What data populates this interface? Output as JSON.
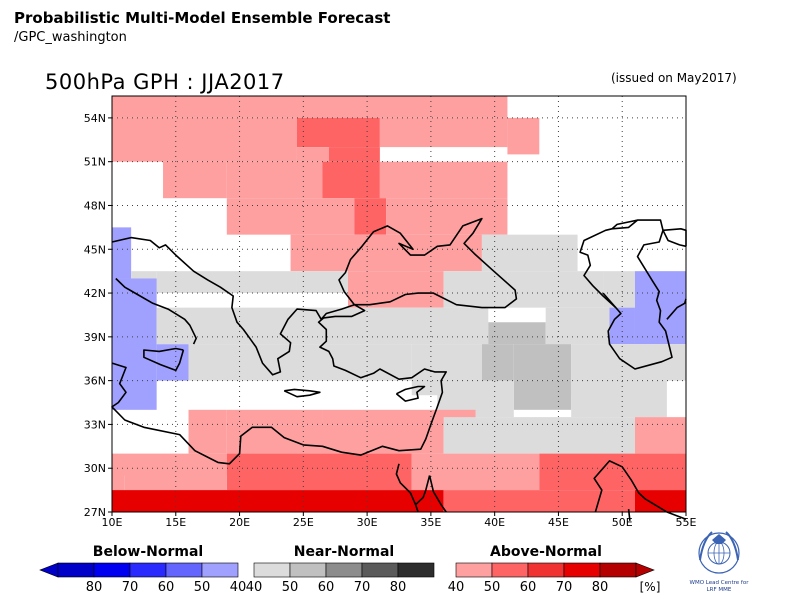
{
  "header": {
    "title": "Probabilistic Multi-Model Ensemble Forecast",
    "subtitle": "/GPC_washington",
    "map_title": "500hPa GPH : JJA2017",
    "issued": "(issued on May2017)"
  },
  "axes": {
    "lat_labels": [
      "54N",
      "51N",
      "48N",
      "45N",
      "42N",
      "39N",
      "36N",
      "33N",
      "30N",
      "27N"
    ],
    "lat_values": [
      54,
      51,
      48,
      45,
      42,
      39,
      36,
      33,
      30,
      27
    ],
    "lon_labels": [
      "10E",
      "15E",
      "20E",
      "25E",
      "30E",
      "35E",
      "40E",
      "45E",
      "50E",
      "55E"
    ],
    "lon_values": [
      10,
      15,
      20,
      25,
      30,
      35,
      40,
      45,
      50,
      55
    ],
    "lon_range": [
      10,
      55
    ],
    "lat_range": [
      27,
      55.5
    ],
    "grid": true
  },
  "legend": {
    "unit": "[%]",
    "groups": [
      {
        "name": "Below-Normal",
        "labels": [
          "80",
          "70",
          "60",
          "50",
          "40"
        ],
        "colors": [
          "#0000c8",
          "#0000f0",
          "#2a2aff",
          "#6464ff",
          "#a0a0ff"
        ]
      },
      {
        "name": "Near-Normal",
        "labels": [
          "40",
          "50",
          "60",
          "70",
          "80"
        ],
        "colors": [
          "#dcdcdc",
          "#c0c0c0",
          "#8c8c8c",
          "#5a5a5a",
          "#2d2d2d"
        ]
      },
      {
        "name": "Above-Normal",
        "labels": [
          "40",
          "50",
          "60",
          "70",
          "80"
        ],
        "colors": [
          "#ffa0a0",
          "#ff6464",
          "#f03232",
          "#e60000",
          "#b40000"
        ]
      }
    ]
  },
  "logo": {
    "text_line1": "WMO Lead Centre for",
    "text_line2": "LRF MME"
  },
  "category_colors": {
    "B40": "#a0a0ff",
    "N40": "#dcdcdc",
    "N50": "#c0c0c0",
    "A40": "#ffa0a0",
    "A50": "#ff6464",
    "A70": "#e60000"
  },
  "cells": [
    {
      "lon": [
        10.0,
        41.0
      ],
      "lat": [
        54.0,
        55.5
      ],
      "c": "A40"
    },
    {
      "lon": [
        10.0,
        24.5
      ],
      "lat": [
        51.0,
        54.0
      ],
      "c": "A40"
    },
    {
      "lon": [
        24.5,
        31.0
      ],
      "lat": [
        52.0,
        54.0
      ],
      "c": "A50"
    },
    {
      "lon": [
        31.0,
        41.0
      ],
      "lat": [
        52.0,
        54.0
      ],
      "c": "A40"
    },
    {
      "lon": [
        41.0,
        43.5
      ],
      "lat": [
        51.5,
        54.0
      ],
      "c": "A40"
    },
    {
      "lon": [
        24.5,
        27.0
      ],
      "lat": [
        51.0,
        52.0
      ],
      "c": "A40"
    },
    {
      "lon": [
        27.0,
        31.0
      ],
      "lat": [
        51.0,
        52.0
      ],
      "c": "A50"
    },
    {
      "lon": [
        14.0,
        19.0
      ],
      "lat": [
        48.5,
        51.0
      ],
      "c": "A40"
    },
    {
      "lon": [
        19.0,
        26.5
      ],
      "lat": [
        48.5,
        51.0
      ],
      "c": "A40"
    },
    {
      "lon": [
        26.5,
        31.0
      ],
      "lat": [
        48.5,
        51.0
      ],
      "c": "A50"
    },
    {
      "lon": [
        31.0,
        41.0
      ],
      "lat": [
        48.5,
        51.0
      ],
      "c": "A40"
    },
    {
      "lon": [
        19.0,
        29.0
      ],
      "lat": [
        46.0,
        48.5
      ],
      "c": "A40"
    },
    {
      "lon": [
        29.0,
        31.5
      ],
      "lat": [
        46.0,
        48.5
      ],
      "c": "A50"
    },
    {
      "lon": [
        31.5,
        41.0
      ],
      "lat": [
        46.0,
        48.5
      ],
      "c": "A40"
    },
    {
      "lon": [
        24.0,
        39.0
      ],
      "lat": [
        43.5,
        46.0
      ],
      "c": "A40"
    },
    {
      "lon": [
        39.0,
        46.5
      ],
      "lat": [
        43.5,
        46.0
      ],
      "c": "N40"
    },
    {
      "lon": [
        10.0,
        11.5
      ],
      "lat": [
        43.0,
        46.5
      ],
      "c": "B40"
    },
    {
      "lon": [
        11.5,
        13.5
      ],
      "lat": [
        42.0,
        43.5
      ],
      "c": "N40"
    },
    {
      "lon": [
        13.5,
        24.5
      ],
      "lat": [
        42.0,
        43.5
      ],
      "c": "N40"
    },
    {
      "lon": [
        24.5,
        28.5
      ],
      "lat": [
        42.0,
        43.5
      ],
      "c": "N40"
    },
    {
      "lon": [
        28.5,
        36.0
      ],
      "lat": [
        41.0,
        43.5
      ],
      "c": "A40"
    },
    {
      "lon": [
        36.0,
        41.0
      ],
      "lat": [
        41.0,
        43.5
      ],
      "c": "N40"
    },
    {
      "lon": [
        41.0,
        48.5
      ],
      "lat": [
        41.0,
        43.5
      ],
      "c": "N40"
    },
    {
      "lon": [
        48.5,
        51.0
      ],
      "lat": [
        41.0,
        43.5
      ],
      "c": "N40"
    },
    {
      "lon": [
        51.0,
        55.0
      ],
      "lat": [
        38.5,
        43.5
      ],
      "c": "B40"
    },
    {
      "lon": [
        10.0,
        13.5
      ],
      "lat": [
        34.0,
        43.0
      ],
      "c": "B40"
    },
    {
      "lon": [
        13.5,
        16.0
      ],
      "lat": [
        36.0,
        38.5
      ],
      "c": "B40"
    },
    {
      "lon": [
        13.5,
        30.0
      ],
      "lat": [
        38.5,
        41.0
      ],
      "c": "N40"
    },
    {
      "lon": [
        30.0,
        39.5
      ],
      "lat": [
        38.5,
        41.0
      ],
      "c": "N40"
    },
    {
      "lon": [
        39.5,
        44.0
      ],
      "lat": [
        38.5,
        40.0
      ],
      "c": "N50"
    },
    {
      "lon": [
        44.0,
        49.0
      ],
      "lat": [
        38.5,
        41.0
      ],
      "c": "N40"
    },
    {
      "lon": [
        49.0,
        51.0
      ],
      "lat": [
        38.5,
        41.0
      ],
      "c": "B40"
    },
    {
      "lon": [
        16.0,
        33.5
      ],
      "lat": [
        36.0,
        38.5
      ],
      "c": "N40"
    },
    {
      "lon": [
        33.5,
        39.0
      ],
      "lat": [
        35.0,
        38.5
      ],
      "c": "N40"
    },
    {
      "lon": [
        39.0,
        41.5
      ],
      "lat": [
        36.0,
        38.5
      ],
      "c": "N50"
    },
    {
      "lon": [
        41.5,
        46.0
      ],
      "lat": [
        36.0,
        38.5
      ],
      "c": "N50"
    },
    {
      "lon": [
        46.0,
        51.0
      ],
      "lat": [
        35.0,
        38.5
      ],
      "c": "N40"
    },
    {
      "lon": [
        51.0,
        55.0
      ],
      "lat": [
        36.0,
        38.5
      ],
      "c": "N40"
    },
    {
      "lon": [
        41.5,
        46.0
      ],
      "lat": [
        34.0,
        36.0
      ],
      "c": "N50"
    },
    {
      "lon": [
        35.5,
        41.5
      ],
      "lat": [
        33.5,
        36.0
      ],
      "c": "N40"
    },
    {
      "lon": [
        46.0,
        53.5
      ],
      "lat": [
        33.5,
        36.0
      ],
      "c": "N40"
    },
    {
      "lon": [
        19.0,
        26.5
      ],
      "lat": [
        33.0,
        34.0
      ],
      "c": "A40"
    },
    {
      "lon": [
        26.5,
        38.5
      ],
      "lat": [
        33.0,
        34.0
      ],
      "c": "A40"
    },
    {
      "lon": [
        16.0,
        19.0
      ],
      "lat": [
        31.0,
        34.0
      ],
      "c": "A40"
    },
    {
      "lon": [
        19.0,
        36.0
      ],
      "lat": [
        31.0,
        33.0
      ],
      "c": "A40"
    },
    {
      "lon": [
        36.0,
        51.0
      ],
      "lat": [
        31.0,
        33.5
      ],
      "c": "N40"
    },
    {
      "lon": [
        51.0,
        55.0
      ],
      "lat": [
        31.0,
        33.5
      ],
      "c": "A40"
    },
    {
      "lon": [
        10.0,
        19.0
      ],
      "lat": [
        29.5,
        31.0
      ],
      "c": "A40"
    },
    {
      "lon": [
        19.0,
        33.5
      ],
      "lat": [
        28.5,
        31.0
      ],
      "c": "A50"
    },
    {
      "lon": [
        33.5,
        43.5
      ],
      "lat": [
        28.5,
        31.0
      ],
      "c": "A40"
    },
    {
      "lon": [
        43.5,
        55.0
      ],
      "lat": [
        28.5,
        31.0
      ],
      "c": "A50"
    },
    {
      "lon": [
        10.0,
        11.0
      ],
      "lat": [
        28.5,
        29.5
      ],
      "c": "A40"
    },
    {
      "lon": [
        11.0,
        19.0
      ],
      "lat": [
        28.5,
        29.5
      ],
      "c": "A40"
    },
    {
      "lon": [
        10.0,
        36.0
      ],
      "lat": [
        27.0,
        28.5
      ],
      "c": "A70"
    },
    {
      "lon": [
        36.0,
        51.0
      ],
      "lat": [
        27.0,
        28.5
      ],
      "c": "A50"
    },
    {
      "lon": [
        51.0,
        55.0
      ],
      "lat": [
        27.0,
        28.5
      ],
      "c": "A70"
    }
  ],
  "coastlines": [
    [
      [
        10,
        45.5
      ],
      [
        11.5,
        45.8
      ],
      [
        13,
        45.6
      ],
      [
        13.7,
        45.1
      ],
      [
        14.2,
        45.3
      ],
      [
        15,
        44.6
      ],
      [
        16.4,
        43.5
      ],
      [
        17.5,
        42.9
      ],
      [
        18.5,
        42.4
      ],
      [
        19.5,
        41.8
      ],
      [
        19.4,
        41
      ],
      [
        19.8,
        40
      ],
      [
        20.3,
        39.5
      ],
      [
        20.8,
        38.9
      ],
      [
        21.3,
        38.3
      ],
      [
        21.8,
        37.2
      ],
      [
        22.6,
        36.4
      ],
      [
        23.2,
        36.6
      ],
      [
        23,
        37.5
      ],
      [
        23.9,
        38
      ],
      [
        24,
        38.6
      ],
      [
        23.2,
        39.2
      ],
      [
        23.8,
        40.2
      ],
      [
        24.5,
        40.9
      ],
      [
        26,
        40.8
      ],
      [
        26.4,
        40.2
      ],
      [
        26.8,
        40.6
      ],
      [
        28,
        40.9
      ],
      [
        29,
        41.2
      ],
      [
        28.2,
        42.1
      ],
      [
        27.8,
        42.9
      ],
      [
        28.3,
        43.4
      ],
      [
        28.7,
        44.3
      ],
      [
        29.6,
        45.2
      ],
      [
        30.5,
        46.2
      ],
      [
        31.6,
        46.6
      ],
      [
        32.6,
        46.1
      ],
      [
        33.6,
        45
      ],
      [
        32.5,
        45.4
      ],
      [
        33.4,
        44.6
      ],
      [
        34.5,
        44.6
      ],
      [
        35.5,
        45.2
      ],
      [
        36.5,
        45.3
      ],
      [
        37.5,
        46.6
      ],
      [
        39,
        47.1
      ],
      [
        38.3,
        46.1
      ],
      [
        37.6,
        45.4
      ],
      [
        38.4,
        44.7
      ],
      [
        39.8,
        43.6
      ],
      [
        41.6,
        42.2
      ],
      [
        41.7,
        41.6
      ],
      [
        40.8,
        41
      ],
      [
        39,
        41
      ],
      [
        37,
        41.2
      ],
      [
        35.2,
        42
      ],
      [
        34,
        42
      ],
      [
        33,
        41.9
      ],
      [
        31.8,
        41.4
      ],
      [
        30.2,
        41.2
      ],
      [
        29,
        41.2
      ]
    ],
    [
      [
        16.4,
        38.5
      ],
      [
        16.6,
        38.9
      ],
      [
        16.1,
        39.8
      ],
      [
        15.7,
        40.2
      ],
      [
        14.4,
        40.9
      ],
      [
        13.2,
        41.3
      ],
      [
        12,
        41.9
      ],
      [
        11,
        42.4
      ],
      [
        10.3,
        43
      ]
    ],
    [
      [
        15.6,
        38.1
      ],
      [
        15,
        38.2
      ],
      [
        13.7,
        38
      ],
      [
        12.5,
        38.1
      ],
      [
        12.5,
        37.6
      ],
      [
        13.8,
        37.1
      ],
      [
        15,
        36.7
      ],
      [
        15.3,
        37.2
      ],
      [
        15.6,
        38.1
      ]
    ],
    [
      [
        10,
        37.2
      ],
      [
        11.1,
        36.9
      ],
      [
        10.6,
        35.8
      ],
      [
        11.1,
        35.2
      ],
      [
        10.5,
        34.5
      ],
      [
        10,
        34.2
      ],
      [
        11,
        33.3
      ],
      [
        12.5,
        32.8
      ],
      [
        15.3,
        32.3
      ],
      [
        16.5,
        31.2
      ],
      [
        18.3,
        30.4
      ],
      [
        19.2,
        30.3
      ],
      [
        20,
        31
      ],
      [
        20.1,
        32.2
      ],
      [
        21,
        32.8
      ],
      [
        22.5,
        32.8
      ],
      [
        23.5,
        32.1
      ],
      [
        25,
        31.6
      ],
      [
        26.5,
        31.5
      ],
      [
        28,
        31.1
      ],
      [
        29.5,
        30.9
      ],
      [
        31.2,
        31.5
      ],
      [
        32.5,
        31.2
      ],
      [
        34.2,
        31.3
      ],
      [
        34.6,
        32
      ],
      [
        35,
        33
      ],
      [
        35.5,
        34.2
      ],
      [
        35.9,
        35.2
      ],
      [
        35.8,
        36
      ],
      [
        36.2,
        36.6
      ],
      [
        35.3,
        36.6
      ],
      [
        34.5,
        36.8
      ],
      [
        33.5,
        36.2
      ],
      [
        32.5,
        36.1
      ],
      [
        31,
        36.8
      ],
      [
        30.5,
        36.5
      ],
      [
        29.5,
        36.2
      ],
      [
        28.3,
        36.7
      ],
      [
        27.4,
        37
      ],
      [
        27.3,
        37.5
      ],
      [
        27,
        38
      ],
      [
        26.3,
        38.3
      ],
      [
        26.8,
        38.7
      ],
      [
        26.8,
        39.5
      ],
      [
        26.2,
        40
      ],
      [
        26.6,
        40.3
      ],
      [
        27.5,
        40.4
      ],
      [
        28.8,
        40.4
      ],
      [
        29.8,
        40.8
      ],
      [
        29,
        41.2
      ]
    ],
    [
      [
        23.5,
        35.3
      ],
      [
        24.3,
        35.4
      ],
      [
        25.5,
        35.3
      ],
      [
        26.3,
        35.2
      ],
      [
        25.5,
        35
      ],
      [
        24.5,
        34.9
      ],
      [
        23.5,
        35.3
      ]
    ],
    [
      [
        32.3,
        35.1
      ],
      [
        33,
        35.4
      ],
      [
        34,
        35.6
      ],
      [
        34.5,
        35.6
      ],
      [
        33.9,
        35.2
      ],
      [
        34,
        34.8
      ],
      [
        33,
        34.6
      ],
      [
        32.3,
        35.1
      ]
    ],
    [
      [
        32.5,
        30.3
      ],
      [
        32.3,
        29.6
      ],
      [
        32.6,
        29
      ],
      [
        33.4,
        28.3
      ],
      [
        33.8,
        27.5
      ],
      [
        34,
        27
      ]
    ],
    [
      [
        34.9,
        29.5
      ],
      [
        34.6,
        28.5
      ],
      [
        34.4,
        28
      ],
      [
        33.8,
        27.5
      ]
    ],
    [
      [
        34.9,
        29.5
      ],
      [
        35.2,
        28.4
      ],
      [
        35.8,
        27.5
      ],
      [
        36.2,
        27
      ]
    ],
    [
      [
        47.9,
        27
      ],
      [
        48.4,
        28.5
      ],
      [
        47.8,
        29.3
      ],
      [
        48.4,
        29.9
      ],
      [
        49,
        30.5
      ],
      [
        50,
        30.1
      ],
      [
        50.7,
        29.2
      ],
      [
        51.3,
        28.3
      ],
      [
        51.8,
        27.9
      ],
      [
        53.5,
        27
      ],
      [
        55,
        26.5
      ]
    ],
    [
      [
        50.5,
        27.2
      ],
      [
        50.6,
        26.4
      ]
    ],
    [
      [
        47.7,
        42.5
      ],
      [
        47,
        43.2
      ],
      [
        47.5,
        43.9
      ],
      [
        47.3,
        44.6
      ],
      [
        46.7,
        44.8
      ],
      [
        47,
        45.6
      ],
      [
        48.7,
        46.3
      ],
      [
        49.2,
        46.4
      ],
      [
        50.5,
        46.5
      ],
      [
        51.2,
        47
      ],
      [
        53,
        47
      ],
      [
        53.2,
        46.3
      ],
      [
        52.9,
        45.5
      ],
      [
        51.7,
        45.3
      ],
      [
        51.2,
        44.5
      ],
      [
        52.4,
        42.8
      ],
      [
        52.9,
        42.1
      ],
      [
        52.7,
        41.5
      ],
      [
        53,
        40.8
      ],
      [
        52.9,
        40
      ],
      [
        53.4,
        39.4
      ],
      [
        53.9,
        37.6
      ],
      [
        53.1,
        37.3
      ],
      [
        51,
        36.8
      ],
      [
        49.8,
        37.5
      ],
      [
        49,
        38.5
      ],
      [
        48.9,
        39.4
      ],
      [
        49.4,
        40.2
      ],
      [
        49.9,
        40.6
      ],
      [
        49.5,
        41
      ],
      [
        48.5,
        41.8
      ],
      [
        47.7,
        42.5
      ]
    ],
    [
      [
        49.2,
        46.4
      ],
      [
        49.6,
        46.7
      ],
      [
        51.2,
        47
      ]
    ],
    [
      [
        53.5,
        40.2
      ],
      [
        54.3,
        41
      ],
      [
        54.9,
        41.3
      ],
      [
        55,
        41.6
      ]
    ],
    [
      [
        53.2,
        46.3
      ],
      [
        53.6,
        45.6
      ],
      [
        54.5,
        45.3
      ],
      [
        55,
        45.2
      ]
    ],
    [
      [
        55,
        45.2
      ],
      [
        55,
        46.3
      ],
      [
        54.6,
        46.4
      ],
      [
        53.2,
        46.3
      ]
    ],
    [
      [
        48.5,
        42
      ],
      [
        48.7,
        41.8
      ],
      [
        49.5,
        41
      ]
    ]
  ]
}
